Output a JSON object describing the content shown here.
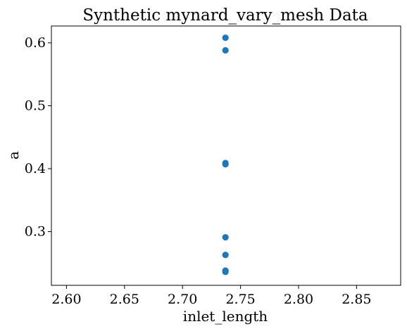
{
  "chart_data": {
    "type": "scatter",
    "title": "Synthetic mynard_vary_mesh Data",
    "xlabel": "inlet_length",
    "ylabel": "a",
    "xlim": [
      2.587,
      2.888
    ],
    "ylim": [
      0.2147,
      0.6267
    ],
    "xticks": [
      2.6,
      2.65,
      2.7,
      2.75,
      2.8,
      2.85
    ],
    "xtick_labels": [
      "2.60",
      "2.65",
      "2.70",
      "2.75",
      "2.80",
      "2.85"
    ],
    "yticks": [
      0.3,
      0.4,
      0.5,
      0.6
    ],
    "ytick_labels": [
      "0.3",
      "0.4",
      "0.5",
      "0.6"
    ],
    "grid": false,
    "marker_color": "#1f77b4",
    "series": [
      {
        "points": [
          {
            "x": 2.737,
            "y": 0.608
          },
          {
            "x": 2.737,
            "y": 0.588
          },
          {
            "x": 2.737,
            "y": 0.409
          },
          {
            "x": 2.737,
            "y": 0.407
          },
          {
            "x": 2.737,
            "y": 0.291
          },
          {
            "x": 2.737,
            "y": 0.263
          },
          {
            "x": 2.737,
            "y": 0.238
          },
          {
            "x": 2.737,
            "y": 0.236
          }
        ]
      }
    ]
  }
}
